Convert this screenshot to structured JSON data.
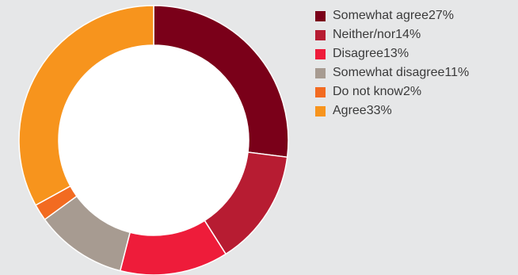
{
  "chart_data": {
    "type": "pie",
    "variant": "donut",
    "legend_position": "right",
    "slices": [
      {
        "label": "Somewhat agree",
        "value": 27,
        "value_label": "27%",
        "color": "#7a0019"
      },
      {
        "label": "Neither/nor",
        "value": 14,
        "value_label": "14%",
        "color": "#b71c32"
      },
      {
        "label": "Disagree",
        "value": 13,
        "value_label": "13%",
        "color": "#ee1c3a"
      },
      {
        "label": "Somewhat disagree",
        "value": 11,
        "value_label": "11%",
        "color": "#a79b91"
      },
      {
        "label": "Do not know",
        "value": 2,
        "value_label": "2%",
        "color": "#f26b21"
      },
      {
        "label": "Agree",
        "value": 33,
        "value_label": "33%",
        "color": "#f7941d"
      }
    ]
  }
}
